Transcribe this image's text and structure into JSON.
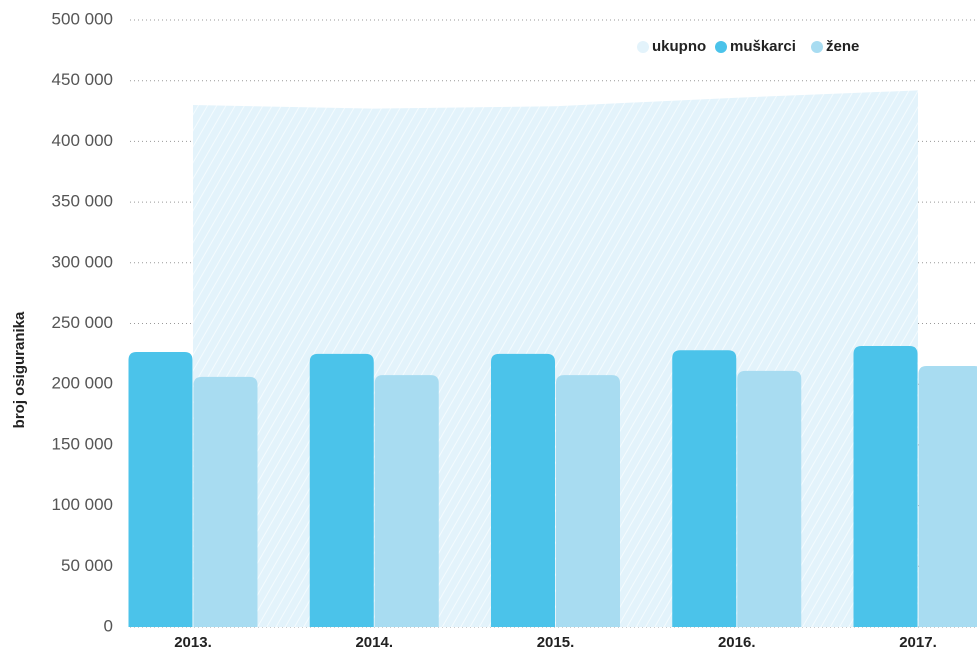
{
  "chart_data": {
    "type": "bar",
    "y_label": "broj osiguranika",
    "categories": [
      "2013.",
      "2014.",
      "2015.",
      "2016.",
      "2017."
    ],
    "series": [
      {
        "name": "ukupno",
        "color": "#e3f3fb",
        "kind": "area",
        "values": [
          430000,
          427000,
          429000,
          436000,
          442000
        ]
      },
      {
        "name": "muškarci",
        "color": "#4bc3ea",
        "values": [
          226500,
          225000,
          225000,
          228000,
          231500
        ]
      },
      {
        "name": "žene",
        "color": "#a8dcf1",
        "values": [
          206000,
          207500,
          207500,
          211000,
          215000
        ]
      }
    ],
    "ylim": [
      0,
      500000
    ],
    "yticks": [
      0,
      {
        "value": 50000,
        "label": "50 000"
      },
      {
        "value": 100000,
        "label": "100 000"
      },
      {
        "value": 150000,
        "label": "150 000"
      },
      {
        "value": 200000,
        "label": "200 000"
      },
      {
        "value": 250000,
        "label": "250 000"
      },
      {
        "value": 300000,
        "label": "300 000"
      },
      {
        "value": 350000,
        "label": "350 000"
      },
      {
        "value": 400000,
        "label": "400 000"
      },
      {
        "value": 450000,
        "label": "450 000"
      },
      {
        "value": 500000,
        "label": "500 000"
      }
    ],
    "grid": true,
    "legend": "top-right"
  }
}
